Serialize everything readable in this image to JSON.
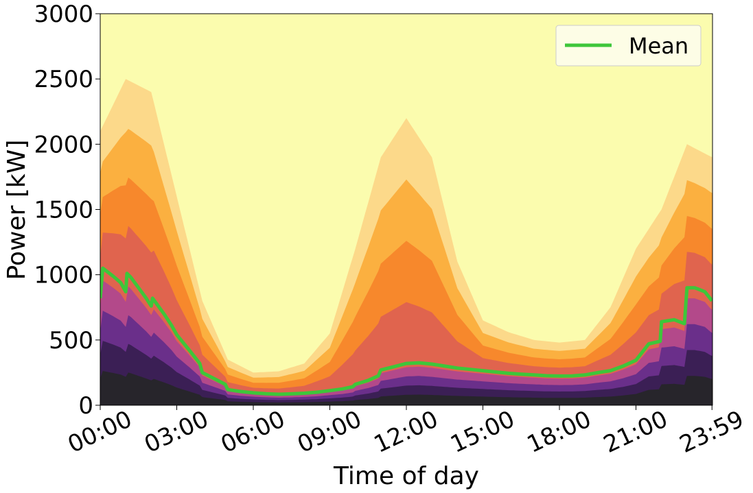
{
  "chart_data": {
    "type": "area",
    "title": "",
    "xlabel": "Time of day",
    "ylabel": "Power [kW]",
    "xlim": [
      0,
      24
    ],
    "ylim": [
      0,
      3000
    ],
    "x_ticks": [
      {
        "value": 0,
        "label": "00:00"
      },
      {
        "value": 3,
        "label": "03:00"
      },
      {
        "value": 6,
        "label": "06:00"
      },
      {
        "value": 9,
        "label": "09:00"
      },
      {
        "value": 12,
        "label": "12:00"
      },
      {
        "value": 15,
        "label": "15:00"
      },
      {
        "value": 18,
        "label": "18:00"
      },
      {
        "value": 21,
        "label": "21:00"
      },
      {
        "value": 23.98,
        "label": "23:59"
      }
    ],
    "y_ticks": [
      0,
      500,
      1000,
      1500,
      2000,
      2500,
      3000
    ],
    "grid": false,
    "legend": {
      "position": "top-right",
      "entries": [
        "Mean"
      ]
    },
    "colors": {
      "mean_line": "#3ec63a",
      "background": "#fbfcae",
      "density_colormap": [
        "#27252b",
        "#3b1f55",
        "#6a2f8a",
        "#b3498a",
        "#e0644e",
        "#f7882c",
        "#fbb040",
        "#fcd98a",
        "#fbfcae"
      ]
    },
    "series": [
      {
        "name": "Mean",
        "x": [
          0,
          0.1,
          0.5,
          0.8,
          1.0,
          1.05,
          1.2,
          1.5,
          1.8,
          2.0,
          2.05,
          2.2,
          2.5,
          2.8,
          3.0,
          3.5,
          3.9,
          4.0,
          4.5,
          4.9,
          5.0,
          5.5,
          6.0,
          6.5,
          7.0,
          7.5,
          8.0,
          8.5,
          9.0,
          9.5,
          9.9,
          10.0,
          10.5,
          10.9,
          11.0,
          11.5,
          12.0,
          12.5,
          13.0,
          13.5,
          14.0,
          14.5,
          15.0,
          15.5,
          16.0,
          16.5,
          17.0,
          17.5,
          18.0,
          18.5,
          19.0,
          19.5,
          20.0,
          20.5,
          21.0,
          21.5,
          21.95,
          22.0,
          22.5,
          22.9,
          23.0,
          23.3,
          23.7,
          23.98
        ],
        "values": [
          820,
          1050,
          990,
          940,
          870,
          1010,
          980,
          900,
          820,
          760,
          820,
          780,
          700,
          610,
          540,
          420,
          320,
          250,
          200,
          160,
          120,
          105,
          95,
          88,
          84,
          87,
          92,
          100,
          112,
          125,
          142,
          160,
          190,
          225,
          270,
          295,
          320,
          325,
          315,
          300,
          285,
          275,
          265,
          255,
          245,
          238,
          232,
          226,
          224,
          225,
          232,
          250,
          265,
          300,
          345,
          470,
          490,
          640,
          655,
          625,
          900,
          900,
          870,
          800
        ]
      }
    ],
    "density_upper_envelope": {
      "description": "visible light-orange edge of shaded distribution (kW)",
      "x": [
        0,
        1,
        2,
        3,
        4,
        5,
        6,
        7,
        8,
        9,
        10,
        11,
        12,
        13,
        14,
        15,
        16,
        17,
        18,
        19,
        20,
        21,
        22,
        23,
        23.98
      ],
      "values": [
        2100,
        2500,
        2400,
        1600,
        800,
        350,
        250,
        260,
        320,
        550,
        1200,
        1900,
        2200,
        1900,
        1100,
        650,
        560,
        500,
        480,
        500,
        750,
        1200,
        1500,
        2000,
        1900
      ]
    }
  }
}
